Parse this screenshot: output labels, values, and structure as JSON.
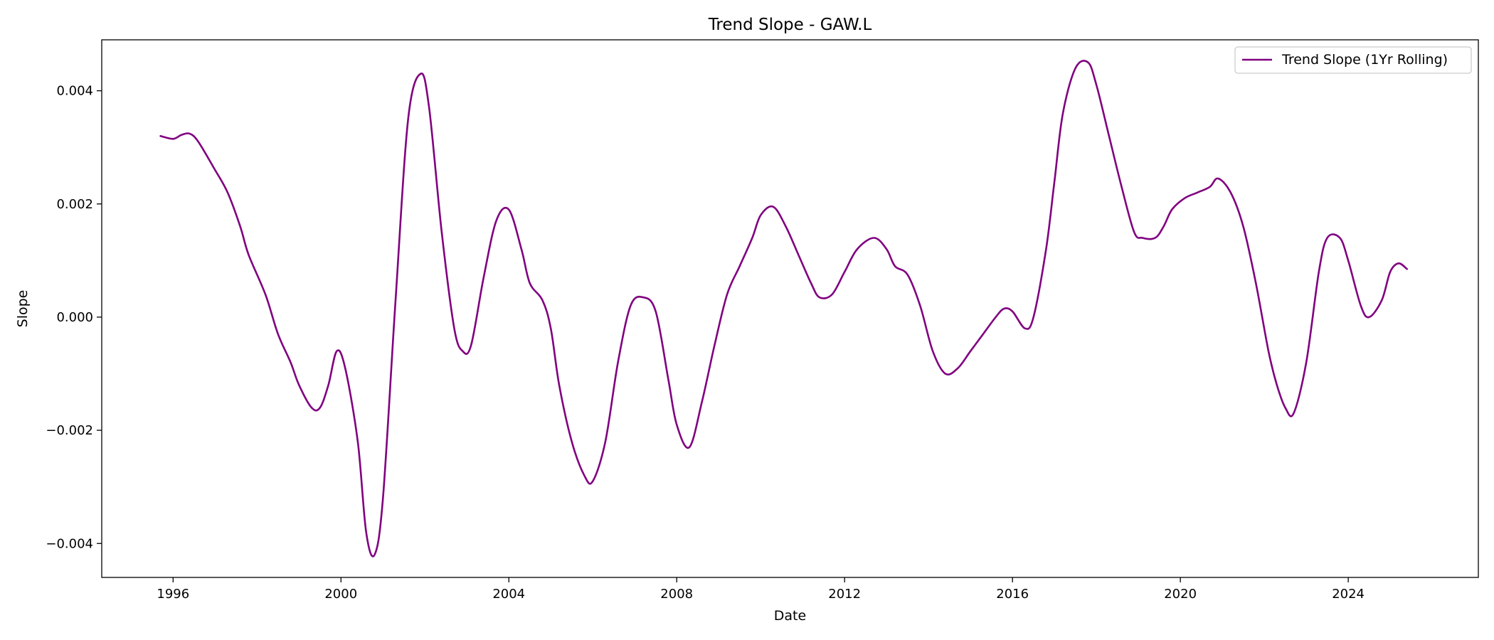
{
  "chart_data": {
    "type": "line",
    "title": "Trend Slope - GAW.L",
    "xlabel": "Date",
    "ylabel": "Slope",
    "x_ticks": [
      1996,
      2000,
      2004,
      2008,
      2012,
      2016,
      2020,
      2024
    ],
    "x_tick_labels": [
      "1996",
      "2000",
      "2004",
      "2008",
      "2012",
      "2016",
      "2020",
      "2024"
    ],
    "y_ticks": [
      -0.004,
      -0.002,
      0.0,
      0.002,
      0.004
    ],
    "y_tick_labels": [
      "−0.004",
      "−0.002",
      "0.000",
      "0.002",
      "0.004"
    ],
    "xlim": [
      1994.3,
      2027.1
    ],
    "ylim": [
      -0.0046,
      0.0049
    ],
    "grid": false,
    "legend_position": "top-right",
    "colors": {
      "line": "#800080",
      "axes": "#000000",
      "background": "#ffffff"
    },
    "series": [
      {
        "name": "Trend Slope (1Yr Rolling)",
        "x": [
          1995.7,
          1996.0,
          1996.2,
          1996.4,
          1996.6,
          1997.0,
          1997.3,
          1997.6,
          1997.8,
          1998.2,
          1998.5,
          1998.8,
          1999.0,
          1999.3,
          1999.5,
          1999.7,
          1999.9,
          2000.1,
          2000.4,
          2000.6,
          2000.8,
          2001.0,
          2001.3,
          2001.6,
          2001.9,
          2002.1,
          2002.4,
          2002.7,
          2002.9,
          2003.1,
          2003.4,
          2003.7,
          2004.0,
          2004.3,
          2004.5,
          2004.8,
          2005.0,
          2005.2,
          2005.5,
          2005.8,
          2006.0,
          2006.3,
          2006.6,
          2006.9,
          2007.2,
          2007.5,
          2007.8,
          2008.0,
          2008.3,
          2008.6,
          2008.9,
          2009.2,
          2009.5,
          2009.8,
          2010.0,
          2010.3,
          2010.6,
          2010.9,
          2011.2,
          2011.4,
          2011.7,
          2012.0,
          2012.3,
          2012.7,
          2013.0,
          2013.2,
          2013.5,
          2013.8,
          2014.1,
          2014.4,
          2014.7,
          2015.0,
          2015.3,
          2015.6,
          2015.8,
          2016.0,
          2016.3,
          2016.5,
          2016.8,
          2017.0,
          2017.2,
          2017.5,
          2017.8,
          2018.0,
          2018.3,
          2018.6,
          2018.9,
          2019.1,
          2019.4,
          2019.6,
          2019.8,
          2020.1,
          2020.4,
          2020.7,
          2020.9,
          2021.2,
          2021.5,
          2021.8,
          2022.1,
          2022.3,
          2022.5,
          2022.7,
          2023.0,
          2023.3,
          2023.5,
          2023.8,
          2024.0,
          2024.3,
          2024.5,
          2024.8,
          2025.0,
          2025.2,
          2025.4
        ],
        "values": [
          0.0032,
          0.00315,
          0.00322,
          0.00324,
          0.0031,
          0.0026,
          0.0022,
          0.0016,
          0.0011,
          0.0004,
          -0.0003,
          -0.0008,
          -0.0012,
          -0.0016,
          -0.0016,
          -0.0012,
          -0.0006,
          -0.0009,
          -0.0022,
          -0.0038,
          -0.0042,
          -0.0032,
          0.0003,
          0.0035,
          0.0043,
          0.0037,
          0.0015,
          -0.0002,
          -0.0006,
          -0.0005,
          0.0007,
          0.0017,
          0.0019,
          0.0012,
          0.0006,
          0.0003,
          -0.0002,
          -0.0012,
          -0.0022,
          -0.0028,
          -0.0029,
          -0.0022,
          -0.0008,
          0.0002,
          0.00035,
          0.0001,
          -0.0011,
          -0.0019,
          -0.0023,
          -0.0015,
          -0.0005,
          0.0004,
          0.0009,
          0.0014,
          0.0018,
          0.00195,
          0.0016,
          0.0011,
          0.0006,
          0.00035,
          0.0004,
          0.0008,
          0.0012,
          0.0014,
          0.0012,
          0.0009,
          0.00075,
          0.0002,
          -0.0006,
          -0.001,
          -0.0009,
          -0.0006,
          -0.0003,
          0.0,
          0.00015,
          0.0001,
          -0.0002,
          0.0,
          0.0012,
          0.0024,
          0.0036,
          0.0044,
          0.0045,
          0.0041,
          0.0032,
          0.0023,
          0.0015,
          0.0014,
          0.0014,
          0.0016,
          0.0019,
          0.0021,
          0.0022,
          0.0023,
          0.00245,
          0.0022,
          0.0016,
          0.0006,
          -0.0006,
          -0.0012,
          -0.0016,
          -0.0017,
          -0.0008,
          0.0008,
          0.0014,
          0.0014,
          0.001,
          0.0002,
          0.0,
          0.0003,
          0.0008,
          0.00095,
          0.00085
        ]
      }
    ]
  }
}
